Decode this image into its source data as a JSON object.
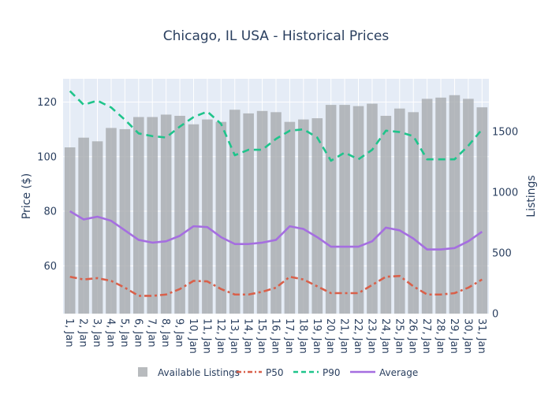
{
  "chart_data": {
    "type": "bar+line",
    "title": "Chicago, IL USA - Historical Prices",
    "ylabel": "Price ($)",
    "y2label": "Listings",
    "ylim": [
      42.5,
      128.5
    ],
    "y2lim": [
      0,
      1935
    ],
    "yticks": [
      60,
      80,
      100,
      120
    ],
    "y2ticks": [
      0,
      500,
      1000,
      1500
    ],
    "grid": true,
    "legend_position": "bottom",
    "categories": [
      "1, Jan",
      "2, Jan",
      "3, Jan",
      "4, Jan",
      "5, Jan",
      "6, Jan",
      "7, Jan",
      "8, Jan",
      "9, Jan",
      "10, Jan",
      "11, Jan",
      "12, Jan",
      "13, Jan",
      "14, Jan",
      "15, Jan",
      "16, Jan",
      "17, Jan",
      "18, Jan",
      "19, Jan",
      "20, Jan",
      "21, Jan",
      "22, Jan",
      "23, Jan",
      "24, Jan",
      "25, Jan",
      "26, Jan",
      "27, Jan",
      "28, Jan",
      "29, Jan",
      "30, Jan",
      "31, Jan"
    ],
    "series": [
      {
        "name": "Available Listings",
        "type": "bar",
        "axis": "y2",
        "color": "#a6aaae",
        "values": [
          1370,
          1450,
          1420,
          1530,
          1520,
          1620,
          1620,
          1640,
          1630,
          1560,
          1600,
          1580,
          1680,
          1650,
          1670,
          1660,
          1580,
          1600,
          1610,
          1720,
          1720,
          1710,
          1730,
          1630,
          1690,
          1660,
          1770,
          1780,
          1800,
          1770,
          1700
        ]
      },
      {
        "name": "P50",
        "type": "line",
        "axis": "y",
        "color": "#d9604a",
        "dash": "dashdot",
        "values": [
          56,
          55,
          55.5,
          54.5,
          52,
          49,
          49,
          49.5,
          51.5,
          54.5,
          54.3,
          51.5,
          49.5,
          49.5,
          50.5,
          52,
          56,
          55,
          52.5,
          50,
          50,
          50,
          53,
          56,
          56.3,
          52.5,
          49.5,
          49.5,
          50,
          52,
          55
        ]
      },
      {
        "name": "P90",
        "type": "line",
        "axis": "y",
        "color": "#1fc48b",
        "dash": "dash",
        "values": [
          124,
          119,
          120.5,
          118,
          113.5,
          108.5,
          107.5,
          107,
          111,
          114.5,
          116.5,
          112,
          100.5,
          102.5,
          102.5,
          106.5,
          109.5,
          110,
          107,
          98.5,
          101.5,
          99,
          102.5,
          109.5,
          109,
          107.5,
          99,
          99,
          99,
          104,
          110
        ]
      },
      {
        "name": "Average",
        "type": "line",
        "axis": "y",
        "color": "#a56ee0",
        "dash": "solid",
        "values": [
          80,
          77,
          78,
          76.5,
          73,
          69.5,
          68.5,
          69,
          71,
          74.5,
          74.2,
          70.5,
          68,
          68,
          68.5,
          69.5,
          74.5,
          73.5,
          70.5,
          67,
          67,
          67,
          69,
          74,
          73,
          70,
          66,
          66,
          66.5,
          69,
          72.5
        ]
      }
    ]
  }
}
